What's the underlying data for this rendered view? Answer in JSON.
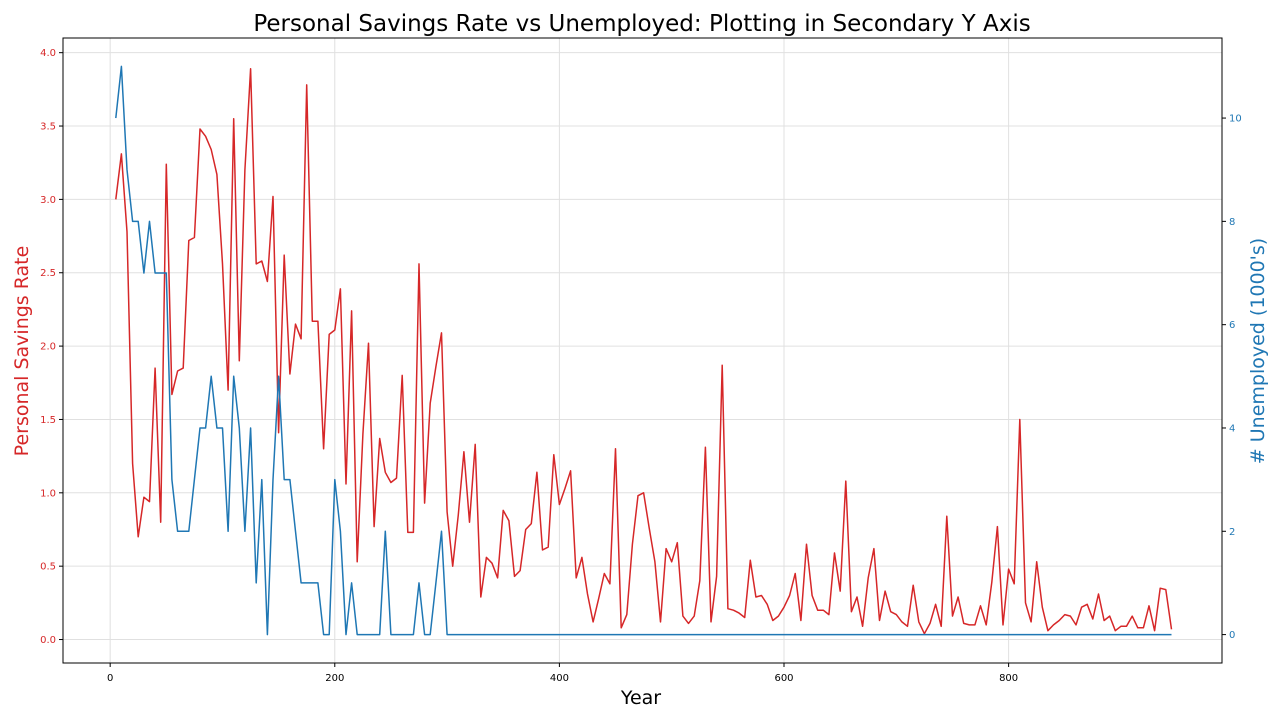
{
  "chart_data": {
    "type": "line",
    "title": "Personal Savings Rate vs Unemployed: Plotting in Secondary Y Axis",
    "xlabel": "Year",
    "xlim": [
      -42,
      990
    ],
    "x_ticks": [
      0,
      200,
      400,
      600,
      800
    ],
    "grid": true,
    "y_left": {
      "label": "Personal Savings Rate",
      "color": "#d62728",
      "lim": [
        -0.16,
        4.1
      ],
      "ticks": [
        0.0,
        0.5,
        1.0,
        1.5,
        2.0,
        2.5,
        3.0,
        3.5,
        4.0
      ],
      "tick_labels": [
        "0.0",
        "0.5",
        "1.0",
        "1.5",
        "2.0",
        "2.5",
        "3.0",
        "3.5",
        "4.0"
      ]
    },
    "y_right": {
      "label": "# Unemployed (1000's)",
      "color": "#1f77b4",
      "lim": [
        -0.55,
        11.55
      ],
      "ticks": [
        0,
        2,
        4,
        6,
        8,
        10
      ],
      "tick_labels": [
        "0",
        "2",
        "4",
        "6",
        "8",
        "10"
      ]
    },
    "series": [
      {
        "axis": "left",
        "color": "#d62728",
        "x": [
          5,
          10,
          15,
          20,
          25,
          30,
          35,
          40,
          45,
          50,
          55,
          60,
          65,
          70,
          75,
          80,
          85,
          90,
          95,
          100,
          105,
          110,
          115,
          120,
          125,
          130,
          135,
          140,
          145,
          150,
          155,
          160,
          165,
          170,
          175,
          180,
          185,
          190,
          195,
          200,
          205,
          210,
          215,
          220,
          225,
          230,
          235,
          240,
          245,
          250,
          255,
          260,
          265,
          270,
          275,
          280,
          285,
          290,
          295,
          300,
          305,
          310,
          315,
          320,
          325,
          330,
          335,
          340,
          345,
          350,
          355,
          360,
          365,
          370,
          375,
          380,
          385,
          390,
          395,
          400,
          405,
          410,
          415,
          420,
          425,
          430,
          435,
          440,
          445,
          450,
          455,
          460,
          465,
          470,
          475,
          480,
          485,
          490,
          495,
          500,
          505,
          510,
          515,
          520,
          525,
          530,
          535,
          540,
          545,
          550,
          555,
          560,
          565,
          570,
          575,
          580,
          585,
          590,
          595,
          600,
          605,
          610,
          615,
          620,
          625,
          630,
          635,
          640,
          645,
          650,
          655,
          660,
          665,
          670,
          675,
          680,
          685,
          690,
          695,
          700,
          705,
          710,
          715,
          720,
          725,
          730,
          735,
          740,
          745,
          750,
          755,
          760,
          765,
          770,
          775,
          780,
          785,
          790,
          795,
          800,
          805,
          810,
          815,
          820,
          825,
          830,
          835,
          840,
          845,
          850,
          855,
          860,
          865,
          870,
          875,
          880,
          885,
          890,
          895,
          900,
          905,
          910,
          915,
          920,
          925,
          930,
          935,
          940,
          945
        ],
        "values": [
          3.0,
          3.31,
          2.78,
          1.2,
          0.7,
          0.97,
          0.94,
          1.85,
          0.8,
          3.24,
          1.67,
          1.83,
          1.85,
          2.72,
          2.74,
          3.48,
          3.43,
          3.34,
          3.17,
          2.56,
          1.7,
          3.55,
          1.9,
          3.2,
          3.89,
          2.56,
          2.58,
          2.44,
          3.02,
          1.41,
          2.62,
          1.81,
          2.15,
          2.05,
          3.78,
          2.17,
          2.17,
          1.3,
          2.08,
          2.11,
          2.39,
          1.06,
          2.24,
          0.53,
          1.4,
          2.02,
          0.77,
          1.37,
          1.14,
          1.07,
          1.1,
          1.8,
          0.73,
          0.73,
          2.56,
          0.93,
          1.61,
          1.86,
          2.09,
          0.87,
          0.5,
          0.85,
          1.28,
          0.8,
          1.33,
          0.29,
          0.56,
          0.52,
          0.42,
          0.88,
          0.81,
          0.43,
          0.47,
          0.75,
          0.79,
          1.14,
          0.61,
          0.63,
          1.26,
          0.92,
          1.03,
          1.15,
          0.42,
          0.56,
          0.31,
          0.12,
          0.28,
          0.45,
          0.38,
          1.3,
          0.08,
          0.17,
          0.65,
          0.98,
          1.0,
          0.76,
          0.53,
          0.12,
          0.62,
          0.53,
          0.66,
          0.16,
          0.11,
          0.16,
          0.4,
          1.31,
          0.12,
          0.43,
          1.87,
          0.21,
          0.2,
          0.18,
          0.15,
          0.54,
          0.29,
          0.3,
          0.24,
          0.13,
          0.16,
          0.22,
          0.3,
          0.45,
          0.13,
          0.65,
          0.3,
          0.2,
          0.2,
          0.17,
          0.59,
          0.33,
          1.08,
          0.19,
          0.29,
          0.09,
          0.42,
          0.62,
          0.13,
          0.33,
          0.19,
          0.17,
          0.12,
          0.09,
          0.37,
          0.12,
          0.04,
          0.11,
          0.24,
          0.09,
          0.84,
          0.16,
          0.29,
          0.11,
          0.1,
          0.1,
          0.23,
          0.1,
          0.39,
          0.77,
          0.1,
          0.48,
          0.38,
          1.5,
          0.25,
          0.12,
          0.53,
          0.22,
          0.06,
          0.1,
          0.13,
          0.17,
          0.16,
          0.1,
          0.22,
          0.24,
          0.14,
          0.31,
          0.13,
          0.16,
          0.06,
          0.09,
          0.09,
          0.16,
          0.08,
          0.08,
          0.23,
          0.06,
          0.35,
          0.34,
          0.07
        ]
      },
      {
        "axis": "right",
        "color": "#1f77b4",
        "x": [
          5,
          10,
          15,
          20,
          25,
          30,
          35,
          40,
          45,
          50,
          55,
          60,
          65,
          70,
          75,
          80,
          85,
          90,
          95,
          100,
          105,
          110,
          115,
          120,
          125,
          130,
          135,
          140,
          145,
          150,
          155,
          160,
          165,
          170,
          175,
          180,
          185,
          190,
          195,
          200,
          205,
          210,
          215,
          220,
          225,
          230,
          235,
          240,
          245,
          250,
          255,
          260,
          265,
          270,
          275,
          280,
          285,
          290,
          295,
          300,
          945
        ],
        "values": [
          10,
          11,
          9,
          8,
          8,
          7,
          8,
          7,
          7,
          7,
          3,
          2,
          2,
          2,
          3,
          4,
          4,
          5,
          4,
          4,
          2,
          5,
          4,
          2,
          4,
          1,
          3,
          0,
          3,
          5,
          3,
          3,
          2,
          1,
          1,
          1,
          1,
          0,
          0,
          3,
          2,
          0,
          1,
          0,
          0,
          0,
          0,
          0,
          2,
          0,
          0,
          0,
          0,
          0,
          1,
          0,
          0,
          1,
          2,
          0,
          0
        ]
      }
    ]
  }
}
